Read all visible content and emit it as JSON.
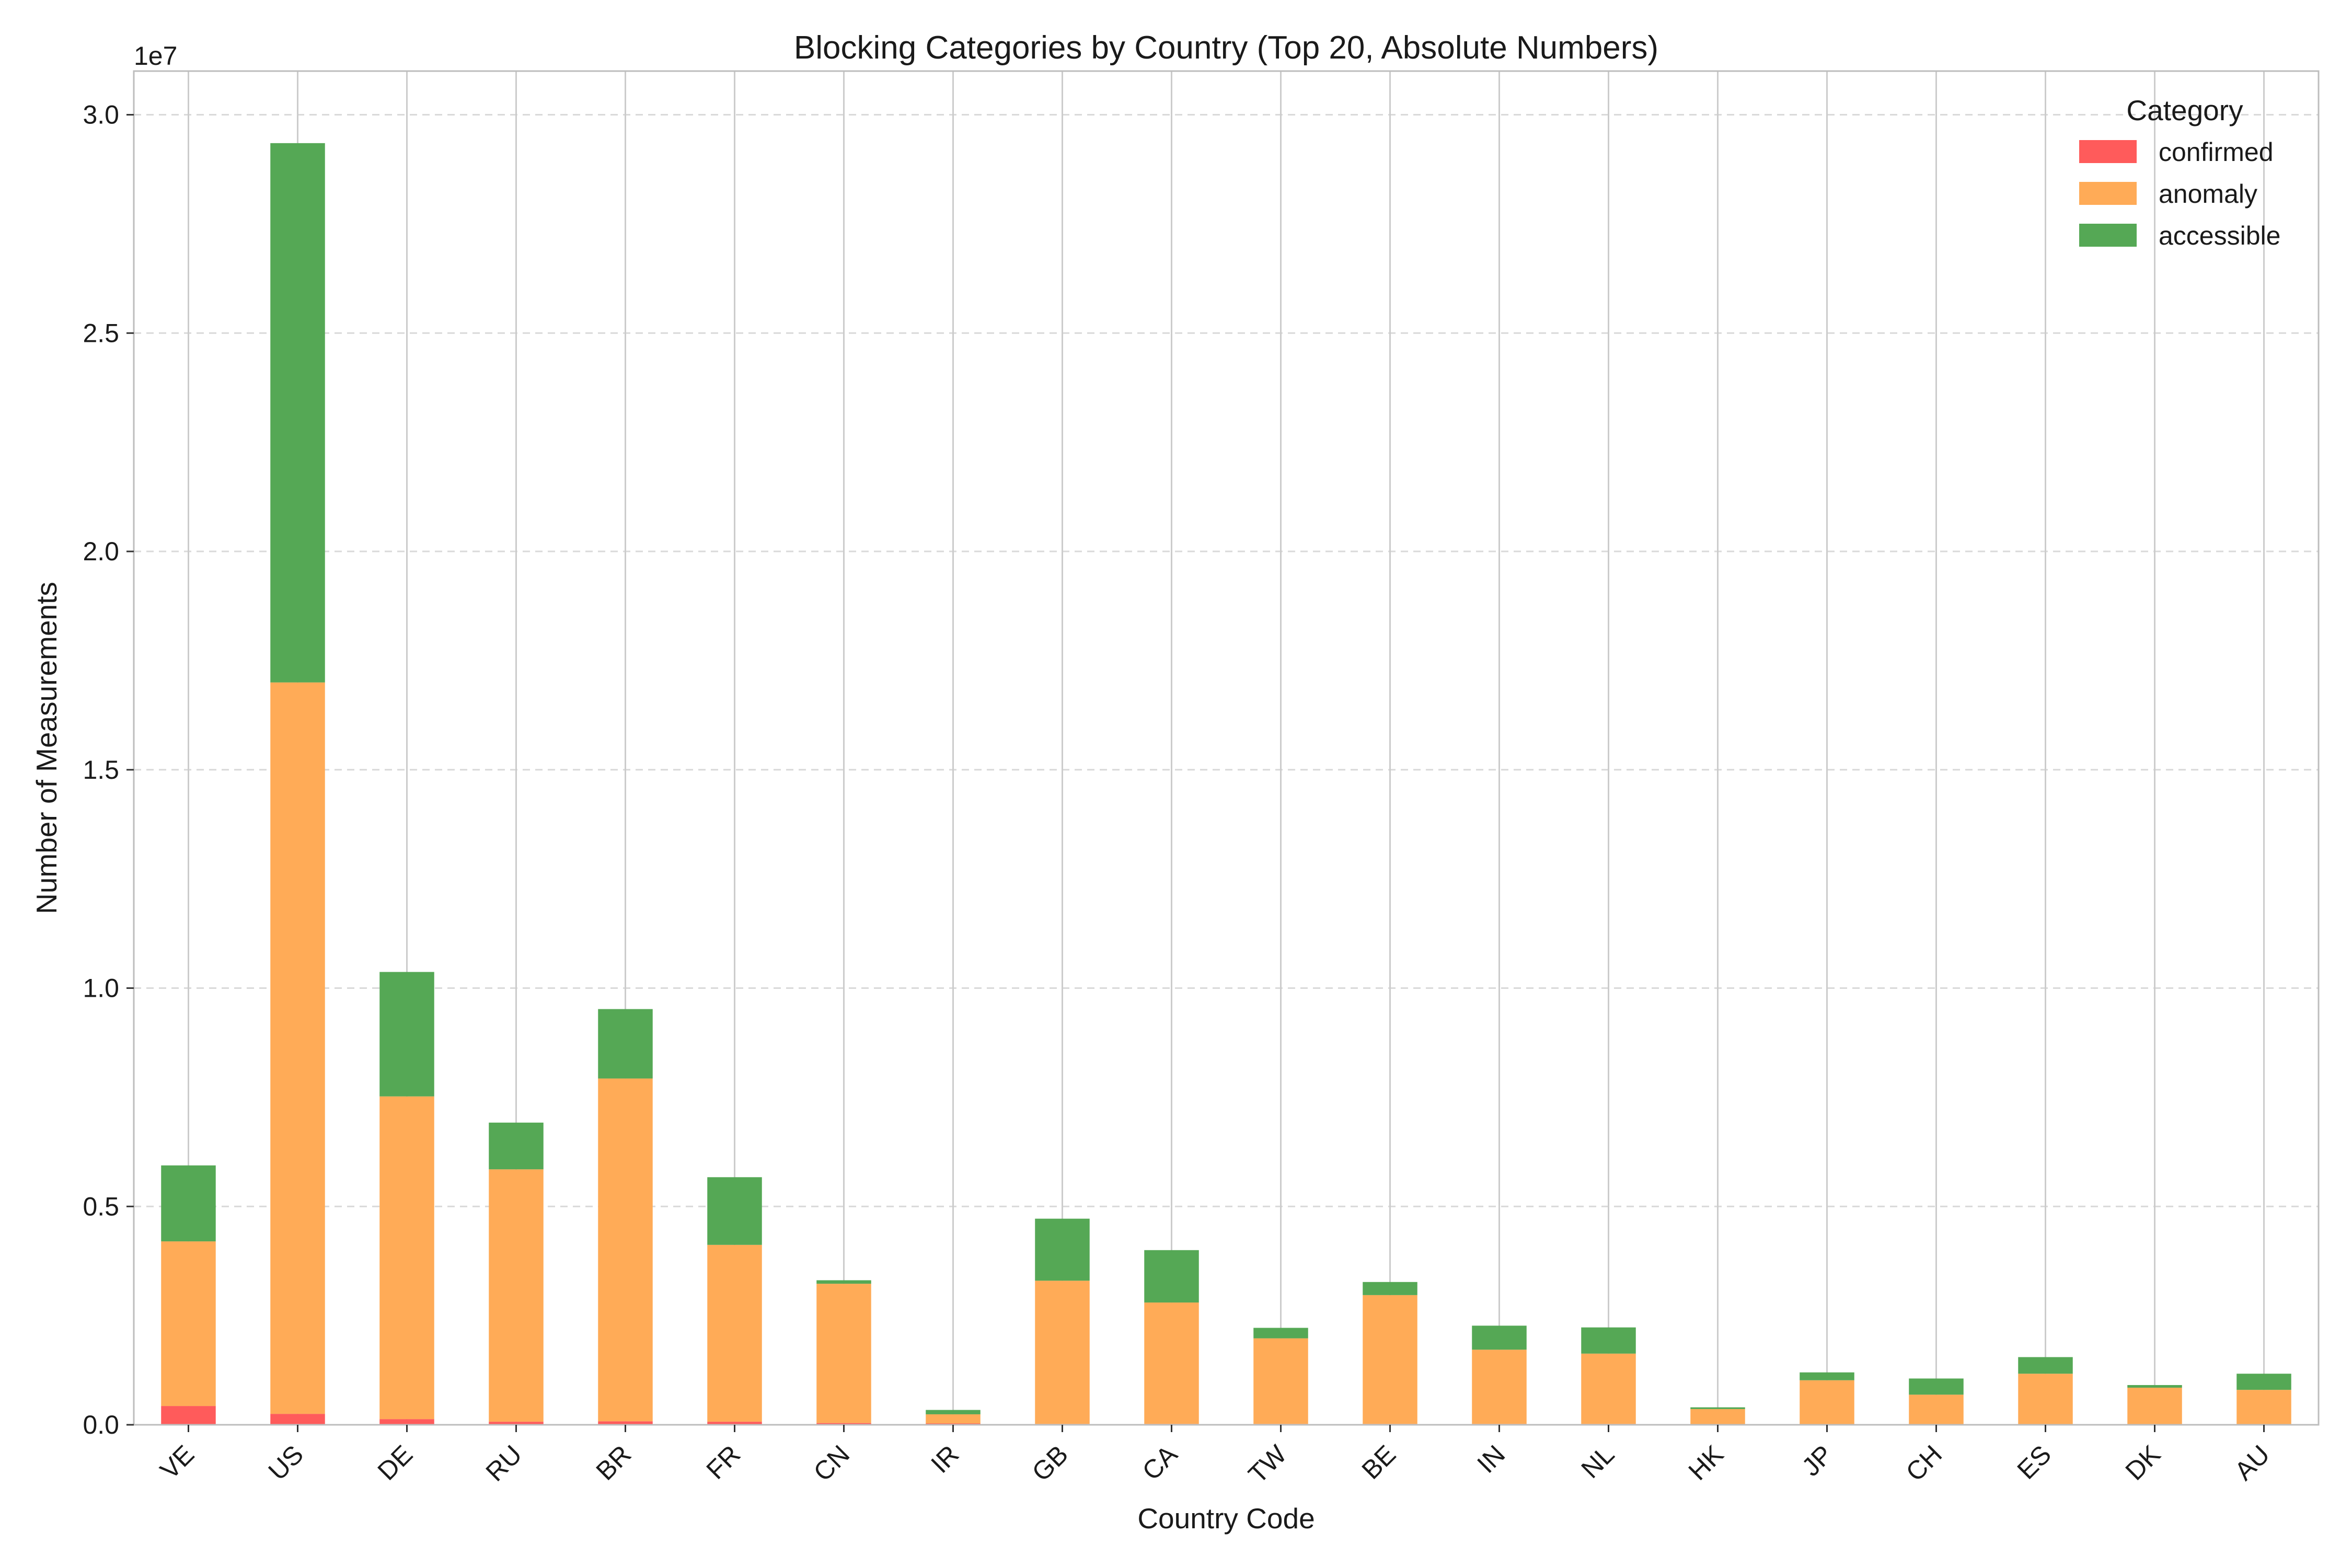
{
  "chart_data": {
    "type": "bar",
    "stacked": true,
    "title": "Blocking Categories by Country (Top 20, Absolute Numbers)",
    "xlabel": "Country Code",
    "ylabel": "Number of Measurements",
    "y_offset_label": "1e7",
    "ylim": [
      0,
      31000000
    ],
    "y_ticks": [
      0,
      5000000,
      10000000,
      15000000,
      20000000,
      25000000,
      30000000
    ],
    "y_tick_labels": [
      "0.0",
      "0.5",
      "1.0",
      "1.5",
      "2.0",
      "2.5",
      "3.0"
    ],
    "grid": true,
    "legend_title": "Category",
    "legend_position": "top-right",
    "categories": [
      "VE",
      "US",
      "DE",
      "RU",
      "BR",
      "FR",
      "CN",
      "IR",
      "GB",
      "CA",
      "TW",
      "BE",
      "IN",
      "NL",
      "HK",
      "JP",
      "CH",
      "ES",
      "DK",
      "AU"
    ],
    "series": [
      {
        "name": "confirmed",
        "color": "#ff5b5b",
        "values": [
          430000,
          250000,
          130000,
          70000,
          80000,
          70000,
          40000,
          30000,
          20000,
          20000,
          20000,
          20000,
          20000,
          20000,
          10000,
          10000,
          10000,
          10000,
          10000,
          10000
        ]
      },
      {
        "name": "anomaly",
        "color": "#ffab57",
        "values": [
          3770000,
          16750000,
          7390000,
          5780000,
          7850000,
          4050000,
          3190000,
          210000,
          3280000,
          2780000,
          1960000,
          2950000,
          1700000,
          1610000,
          350000,
          1010000,
          680000,
          1160000,
          840000,
          790000
        ]
      },
      {
        "name": "accessible",
        "color": "#55a855",
        "values": [
          1740000,
          12350000,
          2850000,
          1070000,
          1590000,
          1550000,
          80000,
          100000,
          1420000,
          1200000,
          240000,
          300000,
          550000,
          600000,
          40000,
          180000,
          370000,
          380000,
          60000,
          370000
        ]
      }
    ]
  }
}
